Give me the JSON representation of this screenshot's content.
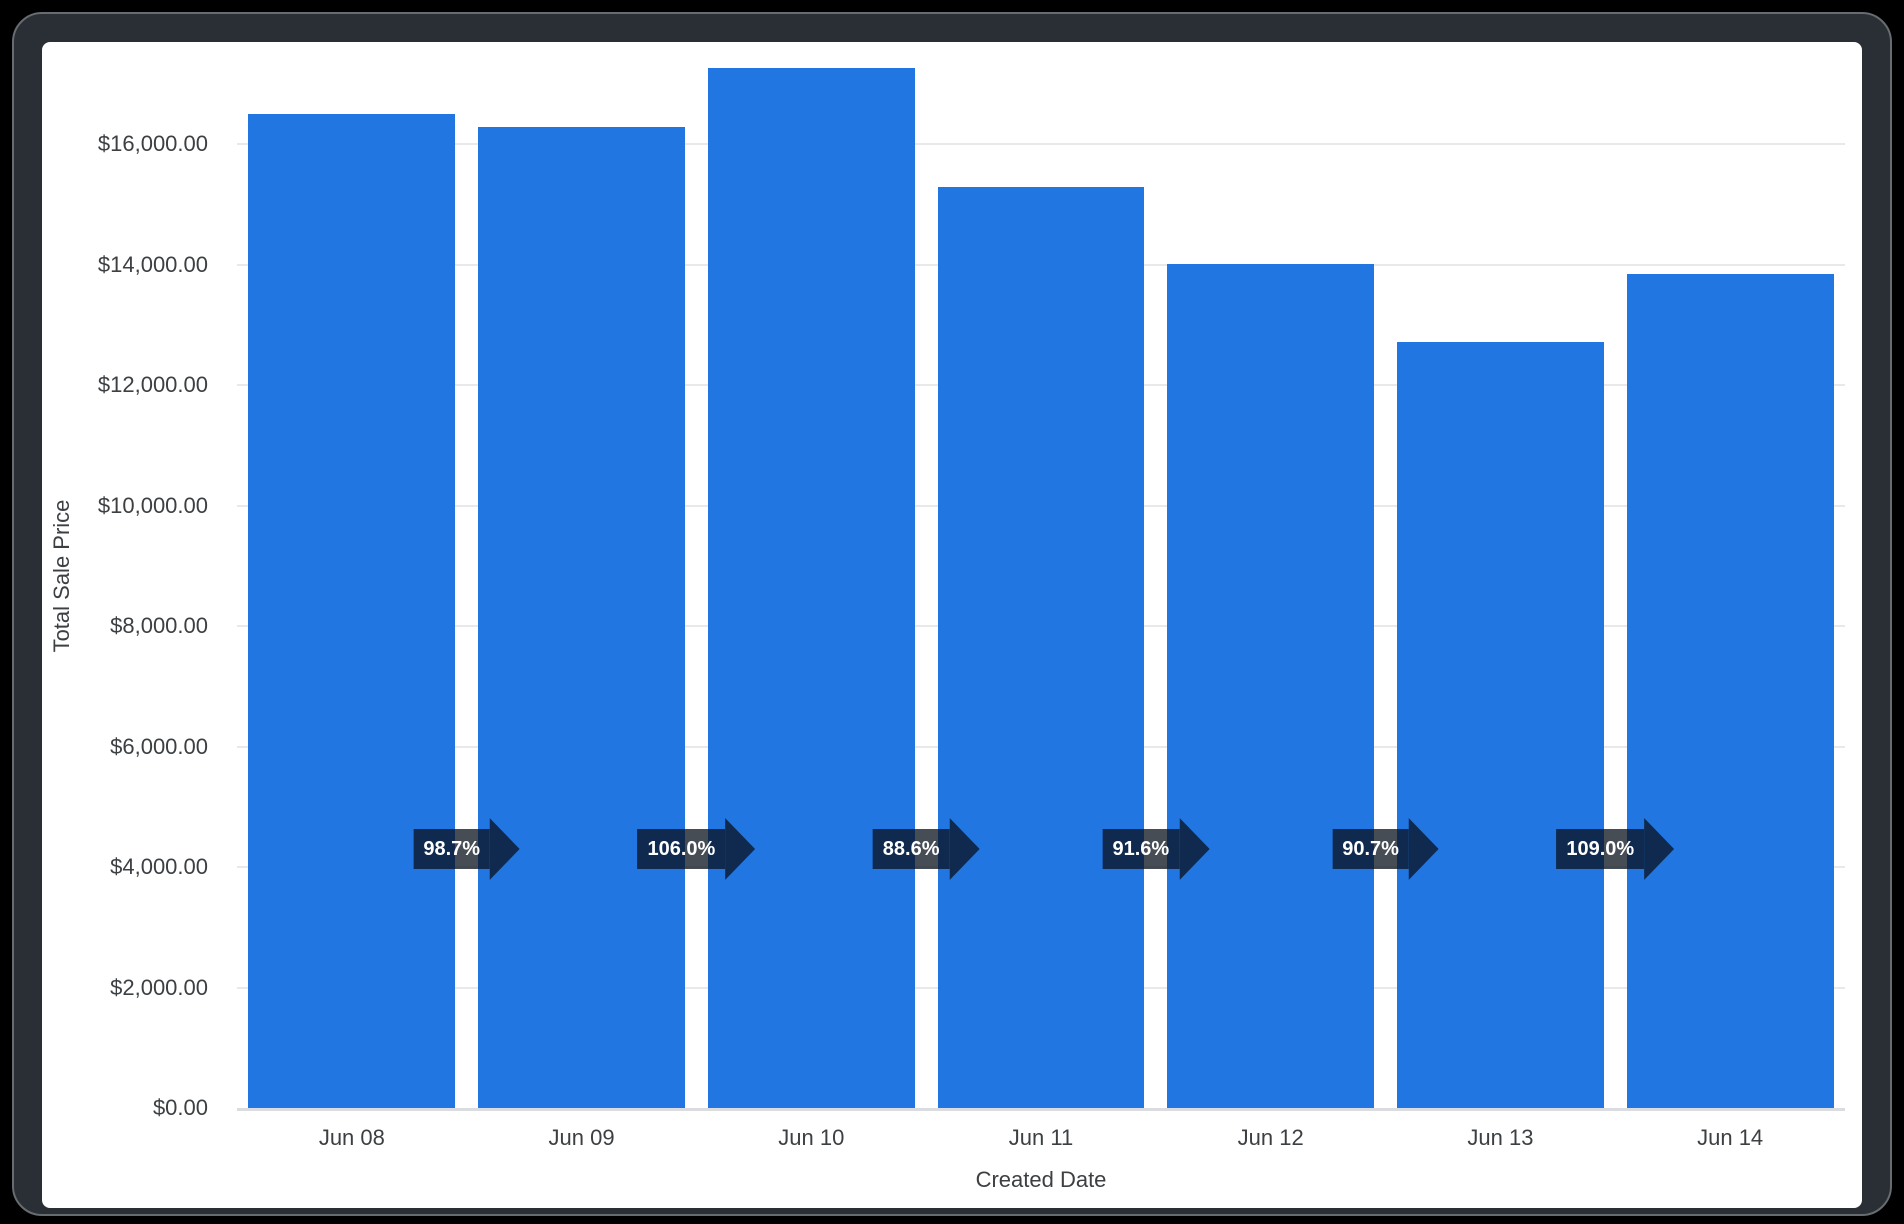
{
  "window": {
    "background": "#000000",
    "frame_color": "#292f34",
    "frame_highlight": "#666c70",
    "paper_color": "#ffffff"
  },
  "chart_data": {
    "type": "bar",
    "title": "",
    "categories": [
      "Jun 08",
      "Jun 09",
      "Jun 10",
      "Jun 11",
      "Jun 12",
      "Jun 13",
      "Jun 14"
    ],
    "values": [
      16500,
      16285,
      17263,
      15295,
      14010,
      12707,
      13851
    ],
    "percent_badges": [
      "98.7%",
      "106.0%",
      "88.6%",
      "91.6%",
      "90.7%",
      "109.0%"
    ],
    "xlabel": "Created Date",
    "ylabel": "Total Sale Price",
    "y_ticks": [
      {
        "value": 0,
        "label": "$0.00"
      },
      {
        "value": 2000,
        "label": "$2,000.00"
      },
      {
        "value": 4000,
        "label": "$4,000.00"
      },
      {
        "value": 6000,
        "label": "$6,000.00"
      },
      {
        "value": 8000,
        "label": "$8,000.00"
      },
      {
        "value": 10000,
        "label": "$10,000.00"
      },
      {
        "value": 12000,
        "label": "$12,000.00"
      },
      {
        "value": 14000,
        "label": "$14,000.00"
      },
      {
        "value": 16000,
        "label": "$16,000.00"
      }
    ],
    "ylim": [
      0,
      17660
    ],
    "grid": true,
    "legend": "none",
    "bar_gap_fraction": 0.099,
    "colors": {
      "bar": "#2176e2",
      "badge_bg": "rgba(10,18,28,0.75)",
      "badge_text": "#ffffff",
      "gridline": "#e9e9e9",
      "baseline": "#dadce0",
      "axis_text": "#3c4043"
    }
  }
}
